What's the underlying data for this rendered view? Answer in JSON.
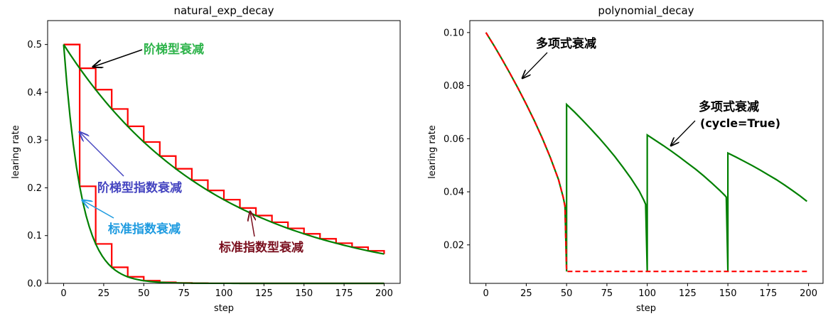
{
  "chart_data": [
    {
      "type": "line",
      "title": "natural_exp_decay",
      "xlabel": "step",
      "ylabel": "learing rate",
      "xlim": [
        -10,
        210
      ],
      "ylim": [
        0,
        0.55
      ],
      "xticks": [
        0,
        25,
        50,
        75,
        100,
        125,
        150,
        175,
        200
      ],
      "xtick_labels": [
        "0",
        "25",
        "50",
        "75",
        "100",
        "125",
        "150",
        "175",
        "200"
      ],
      "yticks": [
        0.0,
        0.1,
        0.2,
        0.3,
        0.4,
        0.5
      ],
      "ytick_labels": [
        "0.0",
        "0.1",
        "0.2",
        "0.3",
        "0.4",
        "0.5"
      ],
      "grid": false,
      "series": [
        {
          "color": "#ff0000",
          "style": "staircase",
          "steps_x": [
            0,
            10,
            20,
            30,
            40,
            50,
            60,
            70,
            80,
            90,
            100,
            110,
            120,
            130,
            140,
            150,
            160,
            170,
            180,
            190,
            200
          ],
          "values": [
            0.5,
            0.2032,
            0.0826,
            0.0336,
            0.0137,
            0.0056,
            0.0023,
            0.0009,
            0.0004,
            0.0001,
            0.0001,
            0.0,
            0.0,
            0.0,
            0.0,
            0.0,
            0.0,
            0.0,
            0.0,
            0.0,
            0.0
          ]
        },
        {
          "color": "#ff0000",
          "style": "staircase",
          "steps_x": [
            0,
            10,
            20,
            30,
            40,
            50,
            60,
            70,
            80,
            90,
            100,
            110,
            120,
            130,
            140,
            150,
            160,
            170,
            180,
            190,
            200
          ],
          "values": [
            0.5,
            0.4502,
            0.4054,
            0.365,
            0.3287,
            0.2959,
            0.2665,
            0.2399,
            0.216,
            0.1945,
            0.1751,
            0.1577,
            0.142,
            0.1279,
            0.1151,
            0.1037,
            0.0933,
            0.0841,
            0.0757,
            0.0681,
            0.0614
          ]
        },
        {
          "color": "#008000",
          "style": "smooth",
          "x": [
            0,
            10,
            20,
            30,
            40,
            50,
            60,
            70,
            80,
            90,
            100,
            110,
            120,
            130,
            140,
            150,
            160,
            170,
            180,
            190,
            200
          ],
          "values": [
            0.5,
            0.2032,
            0.0826,
            0.0336,
            0.0137,
            0.0056,
            0.0023,
            0.0009,
            0.0004,
            0.0001,
            0.0001,
            0.0,
            0.0,
            0.0,
            0.0,
            0.0,
            0.0,
            0.0,
            0.0,
            0.0,
            0.0
          ]
        },
        {
          "color": "#008000",
          "style": "smooth",
          "x": [
            0,
            10,
            20,
            30,
            40,
            50,
            60,
            70,
            80,
            90,
            100,
            110,
            120,
            130,
            140,
            150,
            160,
            170,
            180,
            190,
            200
          ],
          "values": [
            0.5,
            0.4502,
            0.4054,
            0.365,
            0.3287,
            0.2959,
            0.2665,
            0.2399,
            0.216,
            0.1945,
            0.1751,
            0.1577,
            0.142,
            0.1279,
            0.1151,
            0.1037,
            0.0933,
            0.0841,
            0.0757,
            0.0681,
            0.0614
          ]
        }
      ],
      "annotations": [
        {
          "text": "阶梯型衰减",
          "color": "#2db34a",
          "arrow_color": "#000000"
        },
        {
          "text": "阶梯型指数衰减",
          "color": "#4545c0",
          "arrow_color": "#4545c0"
        },
        {
          "text": "标准指数衰减",
          "color": "#1e9be0",
          "arrow_color": "#1e9be0"
        },
        {
          "text": "标准指数型衰减",
          "color": "#7a0f1e",
          "arrow_color": "#7a0f1e"
        }
      ]
    },
    {
      "type": "line",
      "title": "polynomial_decay",
      "xlabel": "step",
      "ylabel": "learing rate",
      "xlim": [
        -10,
        209
      ],
      "ylim": [
        0.0055,
        0.1045
      ],
      "xticks": [
        0,
        25,
        50,
        75,
        100,
        125,
        150,
        175,
        200
      ],
      "xtick_labels": [
        "0",
        "25",
        "50",
        "75",
        "100",
        "125",
        "150",
        "175",
        "200"
      ],
      "yticks": [
        0.02,
        0.04,
        0.06,
        0.08,
        0.1
      ],
      "ytick_labels": [
        "0.02",
        "0.04",
        "0.06",
        "0.08",
        "0.10"
      ],
      "grid": false,
      "series": [
        {
          "color": "#008000",
          "style": "solid",
          "segments": [
            {
              "x": [
                0,
                5,
                10,
                15,
                20,
                25,
                30,
                35,
                40,
                45,
                48,
                49,
                50
              ],
              "values": [
                0.1,
                0.0951,
                0.0899,
                0.0845,
                0.0789,
                0.073,
                0.0668,
                0.0601,
                0.0528,
                0.0446,
                0.0377,
                0.0346,
                0.01
              ]
            },
            {
              "x": [
                50,
                55,
                60,
                65,
                70,
                75,
                80,
                85,
                90,
                95,
                98,
                99,
                100
              ],
              "values": [
                0.0729,
                0.07,
                0.0669,
                0.0637,
                0.0604,
                0.0569,
                0.0532,
                0.0492,
                0.045,
                0.0403,
                0.0367,
                0.0353,
                0.01
              ]
            },
            {
              "x": [
                100,
                105,
                110,
                115,
                120,
                125,
                130,
                135,
                140,
                145,
                148,
                149,
                150
              ],
              "values": [
                0.0614,
                0.0594,
                0.0574,
                0.0553,
                0.0531,
                0.0508,
                0.0485,
                0.046,
                0.0433,
                0.0405,
                0.0387,
                0.038,
                0.01
              ]
            },
            {
              "x": [
                150,
                155,
                160,
                165,
                170,
                175,
                180,
                185,
                190,
                195,
                199
              ],
              "values": [
                0.0546,
                0.0531,
                0.0515,
                0.0499,
                0.0482,
                0.0464,
                0.0446,
                0.0426,
                0.0405,
                0.0383,
                0.0364
              ]
            }
          ]
        },
        {
          "color": "#ff0000",
          "style": "dashed",
          "x": [
            0,
            5,
            10,
            15,
            20,
            25,
            30,
            35,
            40,
            45,
            48,
            49,
            50,
            60,
            80,
            100,
            120,
            140,
            160,
            180,
            199
          ],
          "values": [
            0.1,
            0.0951,
            0.0899,
            0.0845,
            0.0789,
            0.073,
            0.0668,
            0.0601,
            0.0528,
            0.0446,
            0.0377,
            0.0346,
            0.01,
            0.01,
            0.01,
            0.01,
            0.01,
            0.01,
            0.01,
            0.01,
            0.01
          ]
        }
      ],
      "annotations": [
        {
          "text": "多项式衰减",
          "color": "#000000"
        },
        {
          "text": "多项式衰减",
          "color": "#000000"
        },
        {
          "text": "(cycle=True)",
          "color": "#000000"
        }
      ]
    }
  ]
}
